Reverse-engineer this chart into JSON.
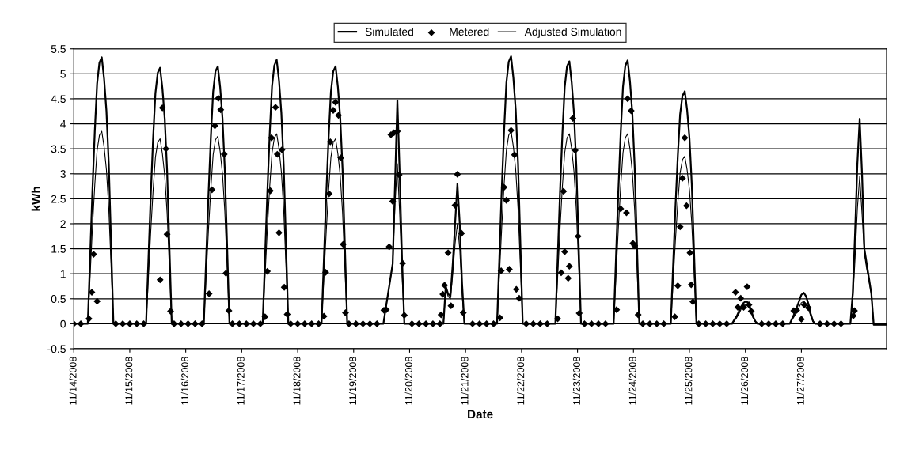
{
  "chart_data": {
    "type": "line",
    "xlabel": "Date",
    "ylabel": "kWh",
    "ylim": [
      -0.5,
      5.5
    ],
    "yticks": [
      -0.5,
      0,
      0.5,
      1,
      1.5,
      2,
      2.5,
      3,
      3.5,
      4,
      4.5,
      5,
      5.5
    ],
    "xlim": [
      "2008-11-14T00:00",
      "2008-11-28T12:30"
    ],
    "xticks": [
      {
        "value": "2008-11-14",
        "label": "11/14/2008"
      },
      {
        "value": "2008-11-15",
        "label": "11/15/2008"
      },
      {
        "value": "2008-11-16",
        "label": "11/16/2008"
      },
      {
        "value": "2008-11-17",
        "label": "11/17/2008"
      },
      {
        "value": "2008-11-18",
        "label": "11/18/2008"
      },
      {
        "value": "2008-11-19",
        "label": "11/19/2008"
      },
      {
        "value": "2008-11-20",
        "label": "11/20/2008"
      },
      {
        "value": "2008-11-21",
        "label": "11/21/2008"
      },
      {
        "value": "2008-11-22",
        "label": "11/22/2008"
      },
      {
        "value": "2008-11-23",
        "label": "11/23/2008"
      },
      {
        "value": "2008-11-24",
        "label": "11/24/2008"
      },
      {
        "value": "2008-11-25",
        "label": "11/25/2008"
      },
      {
        "value": "2008-11-26",
        "label": "11/26/2008"
      },
      {
        "value": "2008-11-27",
        "label": "11/27/2008"
      }
    ],
    "grid": "y",
    "legend": "top",
    "x": [
      "2008-11-14T00:00",
      "2008-11-14T06:00",
      "2008-11-14T07:00",
      "2008-11-14T08:00",
      "2008-11-14T09:00",
      "2008-11-14T10:00",
      "2008-11-14T11:00",
      "2008-11-14T12:00",
      "2008-11-14T13:00",
      "2008-11-14T14:00",
      "2008-11-14T15:00",
      "2008-11-14T16:00",
      "2008-11-14T17:00",
      "2008-11-15T07:00",
      "2008-11-15T08:00",
      "2008-11-15T09:00",
      "2008-11-15T10:00",
      "2008-11-15T11:00",
      "2008-11-15T12:00",
      "2008-11-15T13:00",
      "2008-11-15T14:00",
      "2008-11-15T15:00",
      "2008-11-15T16:00",
      "2008-11-15T17:00",
      "2008-11-15T18:00",
      "2008-11-16T07:45",
      "2008-11-16T08:45",
      "2008-11-16T09:45",
      "2008-11-16T10:45",
      "2008-11-16T11:45",
      "2008-11-16T12:45",
      "2008-11-16T13:45",
      "2008-11-16T14:45",
      "2008-11-16T15:45",
      "2008-11-16T16:45",
      "2008-11-16T17:45",
      "2008-11-16T18:45",
      "2008-11-17T09:00",
      "2008-11-17T10:00",
      "2008-11-17T11:00",
      "2008-11-17T12:00",
      "2008-11-17T13:00",
      "2008-11-17T14:00",
      "2008-11-17T15:00",
      "2008-11-17T16:00",
      "2008-11-17T17:00",
      "2008-11-17T18:00",
      "2008-11-17T19:00",
      "2008-11-17T20:00",
      "2008-11-18T10:15",
      "2008-11-18T11:15",
      "2008-11-18T12:15",
      "2008-11-18T13:15",
      "2008-11-18T14:15",
      "2008-11-18T15:15",
      "2008-11-18T16:15",
      "2008-11-18T17:15",
      "2008-11-18T18:15",
      "2008-11-18T19:15",
      "2008-11-18T20:15",
      "2008-11-18T21:15",
      "2008-11-19T12:45",
      "2008-11-19T13:45",
      "2008-11-19T14:45",
      "2008-11-19T15:45",
      "2008-11-19T16:45",
      "2008-11-19T17:45",
      "2008-11-19T18:45",
      "2008-11-19T19:45",
      "2008-11-19T20:45",
      "2008-11-19T21:45",
      "2008-11-19T22:45",
      "2008-11-19T23:45",
      "2008-11-20T14:30",
      "2008-11-20T15:30",
      "2008-11-20T16:30",
      "2008-11-20T17:30",
      "2008-11-20T18:30",
      "2008-11-20T19:30",
      "2008-11-20T20:30",
      "2008-11-20T21:30",
      "2008-11-20T22:30",
      "2008-11-20T23:30",
      "2008-11-21T00:30",
      "2008-11-21T01:30",
      "2008-11-21T13:30",
      "2008-11-21T14:30",
      "2008-11-21T15:30",
      "2008-11-21T16:30",
      "2008-11-21T17:30",
      "2008-11-21T18:30",
      "2008-11-21T19:30",
      "2008-11-21T20:30",
      "2008-11-21T21:30",
      "2008-11-21T22:30",
      "2008-11-21T23:30",
      "2008-11-22T00:30",
      "2008-11-22T14:30",
      "2008-11-22T15:30",
      "2008-11-22T16:30",
      "2008-11-22T17:30",
      "2008-11-22T18:30",
      "2008-11-22T19:30",
      "2008-11-22T20:30",
      "2008-11-22T21:30",
      "2008-11-22T22:30",
      "2008-11-22T23:30",
      "2008-11-23T00:30",
      "2008-11-23T01:30",
      "2008-11-23T15:30",
      "2008-11-23T16:30",
      "2008-11-23T17:30",
      "2008-11-23T18:30",
      "2008-11-23T19:30",
      "2008-11-23T20:30",
      "2008-11-23T21:30",
      "2008-11-23T22:30",
      "2008-11-23T23:30",
      "2008-11-24T00:30",
      "2008-11-24T01:30",
      "2008-11-24T02:30",
      "2008-11-24T16:00",
      "2008-11-24T17:00",
      "2008-11-24T18:00",
      "2008-11-24T19:00",
      "2008-11-24T20:00",
      "2008-11-24T21:00",
      "2008-11-24T22:00",
      "2008-11-24T23:00",
      "2008-11-25T00:00",
      "2008-11-25T01:00",
      "2008-11-25T02:00",
      "2008-11-25T03:00",
      "2008-11-25T18:15",
      "2008-11-25T19:15",
      "2008-11-25T20:15",
      "2008-11-25T21:15",
      "2008-11-25T22:15",
      "2008-11-25T23:15",
      "2008-11-26T00:15",
      "2008-11-26T01:15",
      "2008-11-26T02:15",
      "2008-11-26T03:15",
      "2008-11-26T04:15",
      "2008-11-26T05:15",
      "2008-11-26T19:00",
      "2008-11-26T20:00",
      "2008-11-26T21:00",
      "2008-11-26T22:00",
      "2008-11-26T23:00",
      "2008-11-27T00:00",
      "2008-11-27T01:00",
      "2008-11-27T02:00",
      "2008-11-27T03:00",
      "2008-11-27T04:00",
      "2008-11-27T05:00",
      "2008-11-27T06:00",
      "2008-11-27T19:00",
      "2008-11-27T20:00",
      "2008-11-27T21:00",
      "2008-11-27T22:00",
      "2008-11-27T23:00",
      "2008-11-28T00:00",
      "2008-11-28T01:00",
      "2008-11-28T02:00",
      "2008-11-28T03:00",
      "2008-11-28T04:00",
      "2008-11-28T05:00",
      "2008-11-28T06:00",
      "2008-11-28T07:00",
      "2008-11-28T12:30"
    ],
    "series": [
      {
        "name": "Simulated",
        "color": "#000000",
        "values": [
          0,
          0,
          1.33,
          2.67,
          3.84,
          4.8,
          5.22,
          5.33,
          4.9,
          4.26,
          3.2,
          1.6,
          0,
          0,
          1.28,
          2.56,
          3.69,
          4.61,
          5.02,
          5.12,
          4.71,
          4.1,
          3.07,
          1.54,
          0,
          0,
          1.29,
          2.58,
          3.71,
          4.64,
          5.05,
          5.15,
          4.74,
          4.12,
          3.09,
          1.55,
          0,
          0,
          1.32,
          2.64,
          3.8,
          4.75,
          5.17,
          5.28,
          4.86,
          4.22,
          3.17,
          1.58,
          0,
          0,
          1.29,
          2.58,
          3.71,
          4.64,
          5.05,
          5.15,
          4.74,
          4.12,
          3.09,
          1.55,
          0,
          0,
          0.3,
          0.6,
          0.9,
          1.2,
          2.8,
          4.47,
          3.0,
          1.3,
          0,
          0,
          0,
          0,
          0.75,
          0.6,
          0.55,
          1.2,
          2.0,
          2.8,
          2.0,
          0.8,
          0,
          0,
          0,
          0,
          1.34,
          2.68,
          3.85,
          4.82,
          5.24,
          5.35,
          4.92,
          4.28,
          3.21,
          1.61,
          0,
          0,
          1.31,
          2.63,
          3.78,
          4.73,
          5.15,
          5.25,
          4.83,
          4.2,
          3.15,
          1.58,
          0,
          0,
          1.32,
          2.64,
          3.79,
          4.74,
          5.16,
          5.27,
          4.85,
          4.22,
          3.16,
          1.58,
          0,
          0,
          1.16,
          2.33,
          3.35,
          4.19,
          4.56,
          4.65,
          4.28,
          3.72,
          2.79,
          1.4,
          0,
          0,
          0.08,
          0.15,
          0.25,
          0.35,
          0.42,
          0.45,
          0.42,
          0.3,
          0.15,
          0.05,
          0,
          0,
          0.1,
          0.2,
          0.32,
          0.45,
          0.58,
          0.62,
          0.55,
          0.4,
          0.2,
          0.05,
          0,
          0,
          0,
          0,
          0.6,
          1.8,
          3.2,
          4.1,
          3.0,
          1.5,
          1.2,
          0.9,
          0.6,
          -0.02,
          -0.02
        ]
      },
      {
        "name": "Metered",
        "type": "scatter",
        "marker": "diamond",
        "color": "#000000",
        "x": [
          "2008-11-14T00:00",
          "2008-11-14T03:00",
          "2008-11-14T06:30",
          "2008-11-14T07:45",
          "2008-11-14T08:30",
          "2008-11-14T10:00",
          "2008-11-14T18:00",
          "2008-11-14T21:00",
          "2008-11-15T00:00",
          "2008-11-15T03:00",
          "2008-11-15T06:00",
          "2008-11-15T13:00",
          "2008-11-15T14:00",
          "2008-11-15T15:30",
          "2008-11-15T16:00",
          "2008-11-15T17:30",
          "2008-11-15T19:00",
          "2008-11-15T22:00",
          "2008-11-16T01:00",
          "2008-11-16T04:00",
          "2008-11-16T07:00",
          "2008-11-16T10:00",
          "2008-11-16T11:15",
          "2008-11-16T12:30",
          "2008-11-16T14:00",
          "2008-11-16T15:00",
          "2008-11-16T16:30",
          "2008-11-16T17:15",
          "2008-11-16T18:30",
          "2008-11-16T20:00",
          "2008-11-16T23:00",
          "2008-11-17T02:00",
          "2008-11-17T05:00",
          "2008-11-17T08:00",
          "2008-11-17T10:00",
          "2008-11-17T11:00",
          "2008-11-17T12:15",
          "2008-11-17T12:45",
          "2008-11-17T14:30",
          "2008-11-17T15:15",
          "2008-11-17T16:00",
          "2008-11-17T17:15",
          "2008-11-17T18:15",
          "2008-11-17T19:30",
          "2008-11-17T21:00",
          "2008-11-18T00:00",
          "2008-11-18T03:00",
          "2008-11-18T06:00",
          "2008-11-18T09:00",
          "2008-11-18T11:15",
          "2008-11-18T12:00",
          "2008-11-18T13:30",
          "2008-11-18T14:00",
          "2008-11-18T15:15",
          "2008-11-18T16:15",
          "2008-11-18T17:30",
          "2008-11-18T18:30",
          "2008-11-18T19:30",
          "2008-11-18T20:30",
          "2008-11-18T22:00",
          "2008-11-19T01:00",
          "2008-11-19T04:00",
          "2008-11-19T07:00",
          "2008-11-19T10:00",
          "2008-11-19T13:00",
          "2008-11-19T14:00",
          "2008-11-19T15:15",
          "2008-11-19T16:00",
          "2008-11-19T16:45",
          "2008-11-19T17:15",
          "2008-11-19T18:45",
          "2008-11-19T19:30",
          "2008-11-19T21:00",
          "2008-11-19T21:45",
          "2008-11-20T01:00",
          "2008-11-20T04:00",
          "2008-11-20T07:00",
          "2008-11-20T10:00",
          "2008-11-20T13:00",
          "2008-11-20T13:30",
          "2008-11-20T14:15",
          "2008-11-20T15:00",
          "2008-11-20T16:30",
          "2008-11-20T17:45",
          "2008-11-20T19:30",
          "2008-11-20T20:30",
          "2008-11-20T22:15",
          "2008-11-20T23:00",
          "2008-11-21T03:00",
          "2008-11-21T06:00",
          "2008-11-21T09:00",
          "2008-11-21T12:00",
          "2008-11-21T14:45",
          "2008-11-21T15:15",
          "2008-11-21T16:30",
          "2008-11-21T17:30",
          "2008-11-21T18:45",
          "2008-11-21T19:30",
          "2008-11-21T21:00",
          "2008-11-21T21:45",
          "2008-11-21T23:00",
          "2008-11-22T02:00",
          "2008-11-22T05:00",
          "2008-11-22T08:00",
          "2008-11-22T11:00",
          "2008-11-22T15:30",
          "2008-11-22T17:00",
          "2008-11-22T18:00",
          "2008-11-22T18:30",
          "2008-11-22T20:00",
          "2008-11-22T20:30",
          "2008-11-22T22:00",
          "2008-11-22T23:00",
          "2008-11-23T00:15",
          "2008-11-23T00:45",
          "2008-11-23T03:00",
          "2008-11-23T06:00",
          "2008-11-23T09:00",
          "2008-11-23T12:00",
          "2008-11-23T16:45",
          "2008-11-23T18:30",
          "2008-11-23T21:00",
          "2008-11-23T21:30",
          "2008-11-23T23:00",
          "2008-11-23T23:45",
          "2008-11-24T00:30",
          "2008-11-24T02:00",
          "2008-11-24T04:00",
          "2008-11-24T07:00",
          "2008-11-24T10:00",
          "2008-11-24T13:00",
          "2008-11-24T17:45",
          "2008-11-24T19:00",
          "2008-11-24T20:00",
          "2008-11-24T21:00",
          "2008-11-24T22:00",
          "2008-11-24T22:45",
          "2008-11-25T00:15",
          "2008-11-25T00:45",
          "2008-11-25T01:30",
          "2008-11-25T04:00",
          "2008-11-25T07:00",
          "2008-11-25T10:00",
          "2008-11-25T13:00",
          "2008-11-25T16:00",
          "2008-11-25T19:45",
          "2008-11-25T20:45",
          "2008-11-25T22:00",
          "2008-11-25T23:15",
          "2008-11-26T00:45",
          "2008-11-26T01:30",
          "2008-11-26T02:30",
          "2008-11-26T07:00",
          "2008-11-26T10:00",
          "2008-11-26T13:00",
          "2008-11-26T16:00",
          "2008-11-26T20:45",
          "2008-11-26T22:00",
          "2008-11-27T00:00",
          "2008-11-27T01:15",
          "2008-11-27T03:00",
          "2008-11-27T08:00",
          "2008-11-27T11:00",
          "2008-11-27T14:00",
          "2008-11-27T17:00",
          "2008-11-27T22:15",
          "2008-11-27T22:45"
        ],
        "values": [
          0,
          0,
          0.1,
          0.63,
          1.39,
          0.45,
          0,
          0,
          0,
          0,
          0,
          0.88,
          4.32,
          3.5,
          1.79,
          0.25,
          0,
          0,
          0,
          0,
          0,
          0.6,
          2.68,
          3.96,
          4.51,
          4.28,
          3.39,
          1.01,
          0.26,
          0,
          0,
          0,
          0,
          0,
          0.14,
          1.05,
          2.66,
          3.72,
          4.33,
          3.39,
          1.82,
          3.48,
          0.73,
          0.19,
          0,
          0,
          0,
          0,
          0,
          0.15,
          1.03,
          2.6,
          3.64,
          4.27,
          4.43,
          4.17,
          3.32,
          1.59,
          0.22,
          0,
          0,
          0,
          0,
          0,
          0.27,
          0.28,
          1.54,
          3.78,
          2.45,
          3.82,
          3.85,
          2.98,
          1.21,
          0.17,
          0,
          0,
          0,
          0,
          0,
          0.18,
          0.59,
          0.77,
          1.42,
          0.36,
          2.37,
          2.99,
          1.81,
          0.22,
          0,
          0,
          0,
          0,
          0.12,
          1.06,
          2.73,
          2.47,
          1.09,
          3.87,
          3.38,
          0.69,
          0.51,
          0,
          0,
          0,
          0,
          0.1,
          1.02,
          2.65,
          1.44,
          0.91,
          1.15,
          4.11,
          3.47,
          1.75,
          0.21,
          0,
          0,
          0,
          0,
          0.28,
          2.3,
          2.22,
          4.5,
          4.26,
          1.61,
          1.56,
          0.18,
          0,
          0,
          0,
          0,
          0.14,
          0.76,
          1.94,
          2.91,
          3.72,
          2.36,
          1.42,
          0.78,
          0.44,
          0,
          0,
          0,
          0,
          0,
          0.63,
          0.33,
          0.51,
          0.33,
          0.74,
          0.38,
          0.25,
          0,
          0,
          0,
          0,
          0.26,
          0.27,
          0.09,
          0.38,
          0.32,
          0,
          0,
          0,
          0,
          0.16,
          0.26
        ]
      },
      {
        "name": "Adjusted Simulation",
        "color": "#000000",
        "values": [
          0,
          0,
          0.96,
          1.93,
          2.77,
          3.47,
          3.77,
          3.85,
          3.54,
          3.08,
          2.31,
          1.16,
          0,
          0,
          0.93,
          1.85,
          2.66,
          3.33,
          3.63,
          3.7,
          3.4,
          2.96,
          2.22,
          1.11,
          0,
          0,
          0.94,
          1.88,
          2.7,
          3.38,
          3.68,
          3.75,
          3.45,
          3.0,
          2.25,
          1.13,
          0,
          0,
          0.95,
          1.9,
          2.74,
          3.42,
          3.72,
          3.8,
          3.5,
          3.04,
          2.28,
          1.14,
          0,
          0,
          0.93,
          1.85,
          2.66,
          3.33,
          3.63,
          3.7,
          3.4,
          2.96,
          2.22,
          1.11,
          0,
          0,
          0.3,
          0.6,
          0.9,
          1.2,
          2.4,
          3.2,
          2.2,
          1.0,
          0,
          0,
          0,
          0,
          0.7,
          0.55,
          0.5,
          1.0,
          1.6,
          2.0,
          1.5,
          0.6,
          0,
          0,
          0,
          0,
          0.96,
          1.93,
          2.77,
          3.47,
          3.77,
          3.85,
          3.54,
          3.08,
          2.31,
          1.16,
          0,
          0,
          0.95,
          1.9,
          2.74,
          3.42,
          3.72,
          3.8,
          3.5,
          3.04,
          2.28,
          1.14,
          0,
          0,
          0.95,
          1.9,
          2.74,
          3.42,
          3.72,
          3.8,
          3.5,
          3.04,
          2.28,
          1.14,
          0,
          0,
          0.84,
          1.68,
          2.41,
          3.02,
          3.28,
          3.35,
          3.08,
          2.68,
          2.01,
          1.01,
          0,
          0,
          0.06,
          0.12,
          0.2,
          0.3,
          0.36,
          0.38,
          0.36,
          0.25,
          0.12,
          0.04,
          0,
          0,
          0.08,
          0.15,
          0.24,
          0.33,
          0.42,
          0.45,
          0.4,
          0.3,
          0.15,
          0.04,
          0,
          0,
          0,
          0,
          0.45,
          1.3,
          2.3,
          2.95,
          2.2,
          1.4,
          1.1,
          0.85,
          0.6,
          -0.02,
          -0.02
        ]
      }
    ]
  }
}
